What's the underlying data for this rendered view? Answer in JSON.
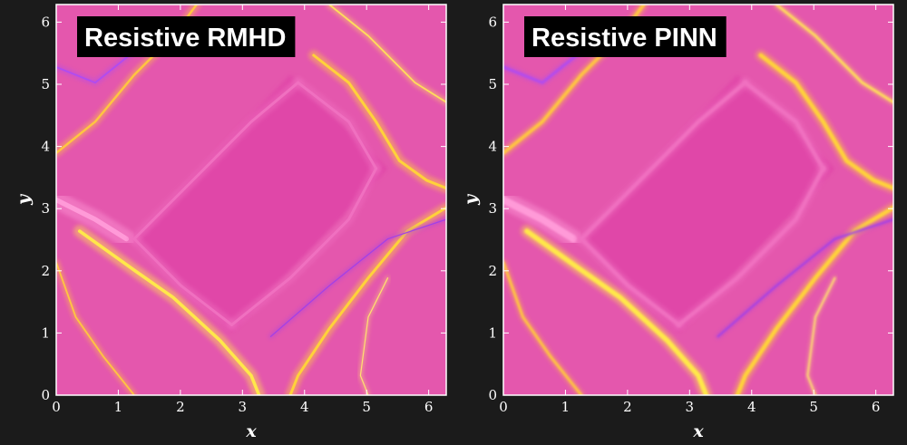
{
  "chart_data": [
    {
      "type": "field",
      "title": "Resistive RMHD",
      "xlabel": "x",
      "ylabel": "y",
      "xlim": [
        0,
        6.283
      ],
      "ylim": [
        0,
        6.283
      ],
      "xticks": [
        0,
        1,
        2,
        3,
        4,
        5,
        6
      ],
      "yticks": [
        0,
        1,
        2,
        3,
        4,
        5,
        6
      ]
    },
    {
      "type": "field",
      "title": "Resistive PINN",
      "xlabel": "x",
      "ylabel": "y",
      "xlim": [
        0,
        6.283
      ],
      "ylim": [
        0,
        6.283
      ],
      "xticks": [
        0,
        1,
        2,
        3,
        4,
        5,
        6
      ],
      "yticks": [
        0,
        1,
        2,
        3,
        4,
        5,
        6
      ]
    }
  ]
}
